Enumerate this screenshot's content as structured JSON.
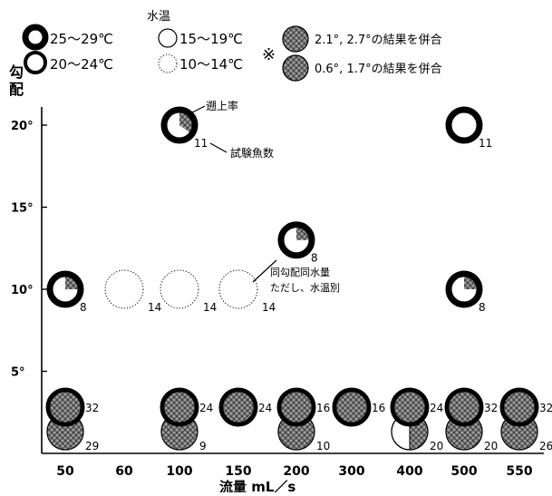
{
  "legend": {
    "water_temp_title": "水温",
    "temp_25_29": "25～29℃",
    "temp_20_24": "20～24℃",
    "temp_15_19": "15～19℃",
    "temp_10_14": "10～14℃",
    "note_mark": "※",
    "combined_high": "2.1°, 2.7°の結果を併合",
    "combined_low": "0.6°, 1.7°の結果を併合"
  },
  "annotations": {
    "ascent_rate": "遡上率",
    "fish_count": "試験魚数",
    "same_condition_line1": "同勾配同水量",
    "same_condition_line2": "ただし、水温別"
  },
  "chart_data": {
    "type": "scatter",
    "ylabel_chars": [
      "勾",
      "配"
    ],
    "xlabel": "流量 mL／s",
    "x_categories": [
      "50",
      "60",
      "100",
      "150",
      "200",
      "300",
      "400",
      "500",
      "550"
    ],
    "y_ticks": [
      "20°",
      "15°",
      "10°",
      "5°"
    ],
    "y_tick_values": [
      20,
      15,
      10,
      5
    ],
    "colors": {
      "ring": "#000000",
      "shade": "#9a9a9a",
      "shade_dark": "#4a4a4a"
    },
    "points": [
      {
        "flow": "100",
        "slope": 20,
        "temp": "25-29",
        "ascent": 0.35,
        "fish": "11"
      },
      {
        "flow": "500",
        "slope": 20,
        "temp": "25-29",
        "ascent": 0,
        "fish": "11"
      },
      {
        "flow": "200",
        "slope": 13,
        "temp": "25-29",
        "ascent": 0.25,
        "fish": "8"
      },
      {
        "flow": "50",
        "slope": 10,
        "temp": "25-29",
        "ascent": 0.25,
        "fish": "8"
      },
      {
        "flow": "60",
        "slope": 10,
        "temp": "10-14",
        "ascent": 0,
        "fish": "14"
      },
      {
        "flow": "100",
        "slope": 10,
        "temp": "10-14",
        "ascent": 0,
        "fish": "14"
      },
      {
        "flow": "150",
        "slope": 10,
        "temp": "10-14",
        "ascent": 0,
        "fish": "14"
      },
      {
        "flow": "500",
        "slope": 10,
        "temp": "25-29",
        "ascent": 0.25,
        "fish": "8"
      },
      {
        "flow": "50",
        "slope": "2.1-2.7",
        "temp": "25-29",
        "ascent": 1,
        "fish": "32"
      },
      {
        "flow": "100",
        "slope": "2.1-2.7",
        "temp": "25-29",
        "ascent": 1,
        "fish": "24"
      },
      {
        "flow": "150",
        "slope": "2.1-2.7",
        "temp": "25-29",
        "ascent": 1,
        "fish": "24"
      },
      {
        "flow": "200",
        "slope": "2.1-2.7",
        "temp": "25-29",
        "ascent": 1,
        "fish": "16"
      },
      {
        "flow": "300",
        "slope": "2.1-2.7",
        "temp": "25-29",
        "ascent": 1,
        "fish": "16"
      },
      {
        "flow": "400",
        "slope": "2.1-2.7",
        "temp": "25-29",
        "ascent": 1,
        "fish": "24"
      },
      {
        "flow": "500",
        "slope": "2.1-2.7",
        "temp": "25-29",
        "ascent": 1,
        "fish": "32"
      },
      {
        "flow": "550",
        "slope": "2.1-2.7",
        "temp": "25-29",
        "ascent": 1,
        "fish": "32"
      },
      {
        "flow": "50",
        "slope": "0.6-1.7",
        "temp": "combined",
        "ascent": 1,
        "fish": "29"
      },
      {
        "flow": "100",
        "slope": "0.6-1.7",
        "temp": "combined",
        "ascent": 1,
        "fish": "9"
      },
      {
        "flow": "200",
        "slope": "0.6-1.7",
        "temp": "combined",
        "ascent": 1,
        "fish": "10"
      },
      {
        "flow": "400",
        "slope": "0.6-1.7",
        "temp": "combined",
        "ascent": 0.5,
        "fish": "20"
      },
      {
        "flow": "500",
        "slope": "0.6-1.7",
        "temp": "combined",
        "ascent": 1,
        "fish": "20"
      },
      {
        "flow": "550",
        "slope": "0.6-1.7",
        "temp": "combined",
        "ascent": 1,
        "fish": "26"
      }
    ]
  }
}
